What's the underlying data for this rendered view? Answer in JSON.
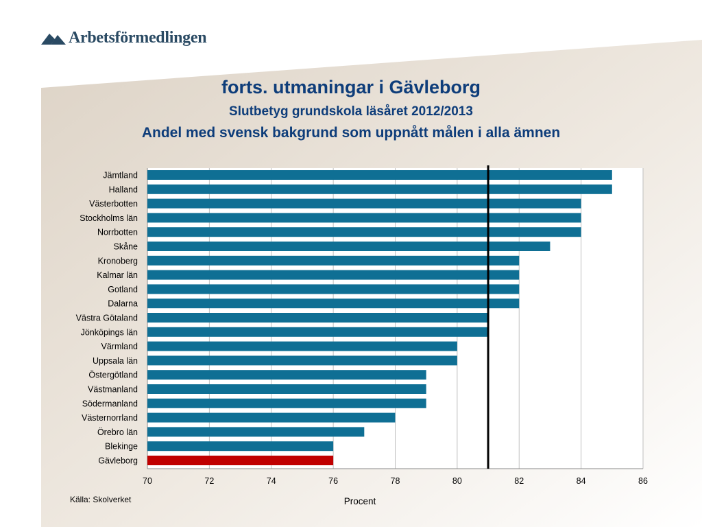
{
  "logo": {
    "text": "Arbetsförmedlingen"
  },
  "header": {
    "title": "forts. utmaningar i Gävleborg",
    "subtitle": "Slutbetyg grundskola läsåret 2012/2013",
    "subtitle2": "Andel med svensk bakgrund som uppnått målen i alla ämnen"
  },
  "source": "Källa: Skolverket",
  "colors": {
    "bar": "#0f6f94",
    "highlight": "#c00000",
    "title": "#0e3d7a",
    "reference_line": "#000000"
  },
  "chart_data": {
    "type": "bar",
    "orientation": "horizontal",
    "categories": [
      "Jämtland",
      "Halland",
      "Västerbotten",
      "Stockholms län",
      "Norrbotten",
      "Skåne",
      "Kronoberg",
      "Kalmar län",
      "Gotland",
      "Dalarna",
      "Västra Götaland",
      "Jönköpings län",
      "Värmland",
      "Uppsala län",
      "Östergötland",
      "Västmanland",
      "Södermanland",
      "Västernorrland",
      "Örebro län",
      "Blekinge",
      "Gävleborg"
    ],
    "values": [
      85,
      85,
      84,
      84,
      84,
      83,
      82,
      82,
      82,
      82,
      81,
      81,
      80,
      80,
      79,
      79,
      79,
      78,
      77,
      76,
      76
    ],
    "highlight_category": "Gävleborg",
    "reference_value": 81,
    "xlim": [
      70,
      86
    ],
    "xticks": [
      70,
      72,
      74,
      76,
      78,
      80,
      82,
      84,
      86
    ],
    "xlabel": "Procent",
    "grid": true
  }
}
